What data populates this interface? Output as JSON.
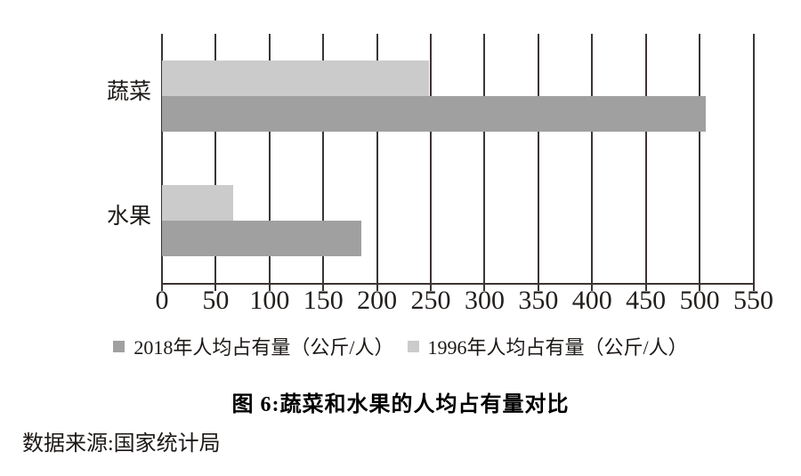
{
  "chart_data": {
    "type": "bar",
    "orientation": "horizontal",
    "title": "图 6:蔬菜和水果的人均占有量对比",
    "source": "数据来源:国家统计局",
    "categories": [
      "蔬菜",
      "水果"
    ],
    "category_keys": [
      "vegetables",
      "fruits"
    ],
    "series": [
      {
        "name": "2018年人均占有量（公斤/人）",
        "key": "2018",
        "values": [
          506,
          185
        ],
        "color": "#a0a0a0"
      },
      {
        "name": "1996年人均占有量（公斤/人）",
        "key": "1996",
        "values": [
          248,
          66
        ],
        "color": "#cbcbcb"
      }
    ],
    "xlim": [
      0,
      550
    ],
    "xticks": [
      0,
      50,
      100,
      150,
      200,
      250,
      300,
      350,
      400,
      450,
      500,
      550
    ],
    "grid": "vertical",
    "legend_position": "bottom",
    "axis_color": "#3b3533",
    "background": "#ffffff"
  }
}
